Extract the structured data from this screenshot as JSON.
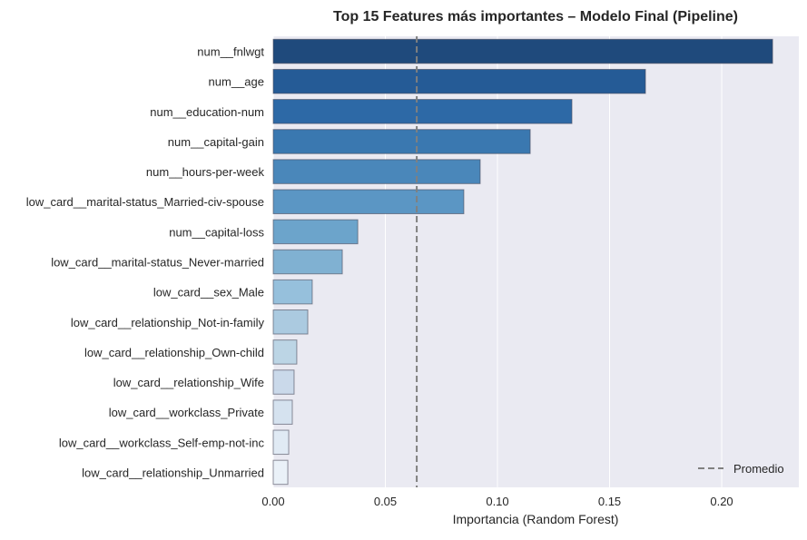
{
  "chart_data": {
    "type": "bar",
    "orientation": "horizontal",
    "title": "Top 15 Features más importantes – Modelo Final (Pipeline)",
    "xlabel": "Importancia (Random Forest)",
    "ylabel": "",
    "xlim": [
      0,
      0.2344
    ],
    "xticks": [
      0.0,
      0.05,
      0.1,
      0.15,
      0.2
    ],
    "xtick_labels": [
      "0.00",
      "0.05",
      "0.10",
      "0.15",
      "0.20"
    ],
    "grid": true,
    "categories": [
      "num__fnlwgt",
      "num__age",
      "num__education-num",
      "num__capital-gain",
      "num__hours-per-week",
      "low_card__marital-status_Married-civ-spouse",
      "num__capital-loss",
      "low_card__marital-status_Never-married",
      "low_card__sex_Male",
      "low_card__relationship_Not-in-family",
      "low_card__relationship_Own-child",
      "low_card__relationship_Wife",
      "low_card__workclass_Private",
      "low_card__workclass_Self-emp-not-inc",
      "low_card__relationship_Unmarried"
    ],
    "values": [
      0.2227,
      0.166,
      0.1332,
      0.1146,
      0.0923,
      0.085,
      0.0377,
      0.0308,
      0.0174,
      0.0154,
      0.0105,
      0.0093,
      0.0085,
      0.0069,
      0.0065
    ],
    "colors": [
      "#1f4a7c",
      "#255b96",
      "#2d69a6",
      "#3a78b0",
      "#4a87ba",
      "#5b96c4",
      "#6ca4cb",
      "#80b1d2",
      "#96c0dc",
      "#abcae0",
      "#bcd5e5",
      "#cad9ea",
      "#d5e2ef",
      "#e0eaf4",
      "#eaf1f8"
    ],
    "mean_line": {
      "value": 0.064,
      "label": "Promedio",
      "color": "#808080"
    },
    "legend_placement": "bottom-right",
    "axes_background": "#eaeaf2"
  }
}
